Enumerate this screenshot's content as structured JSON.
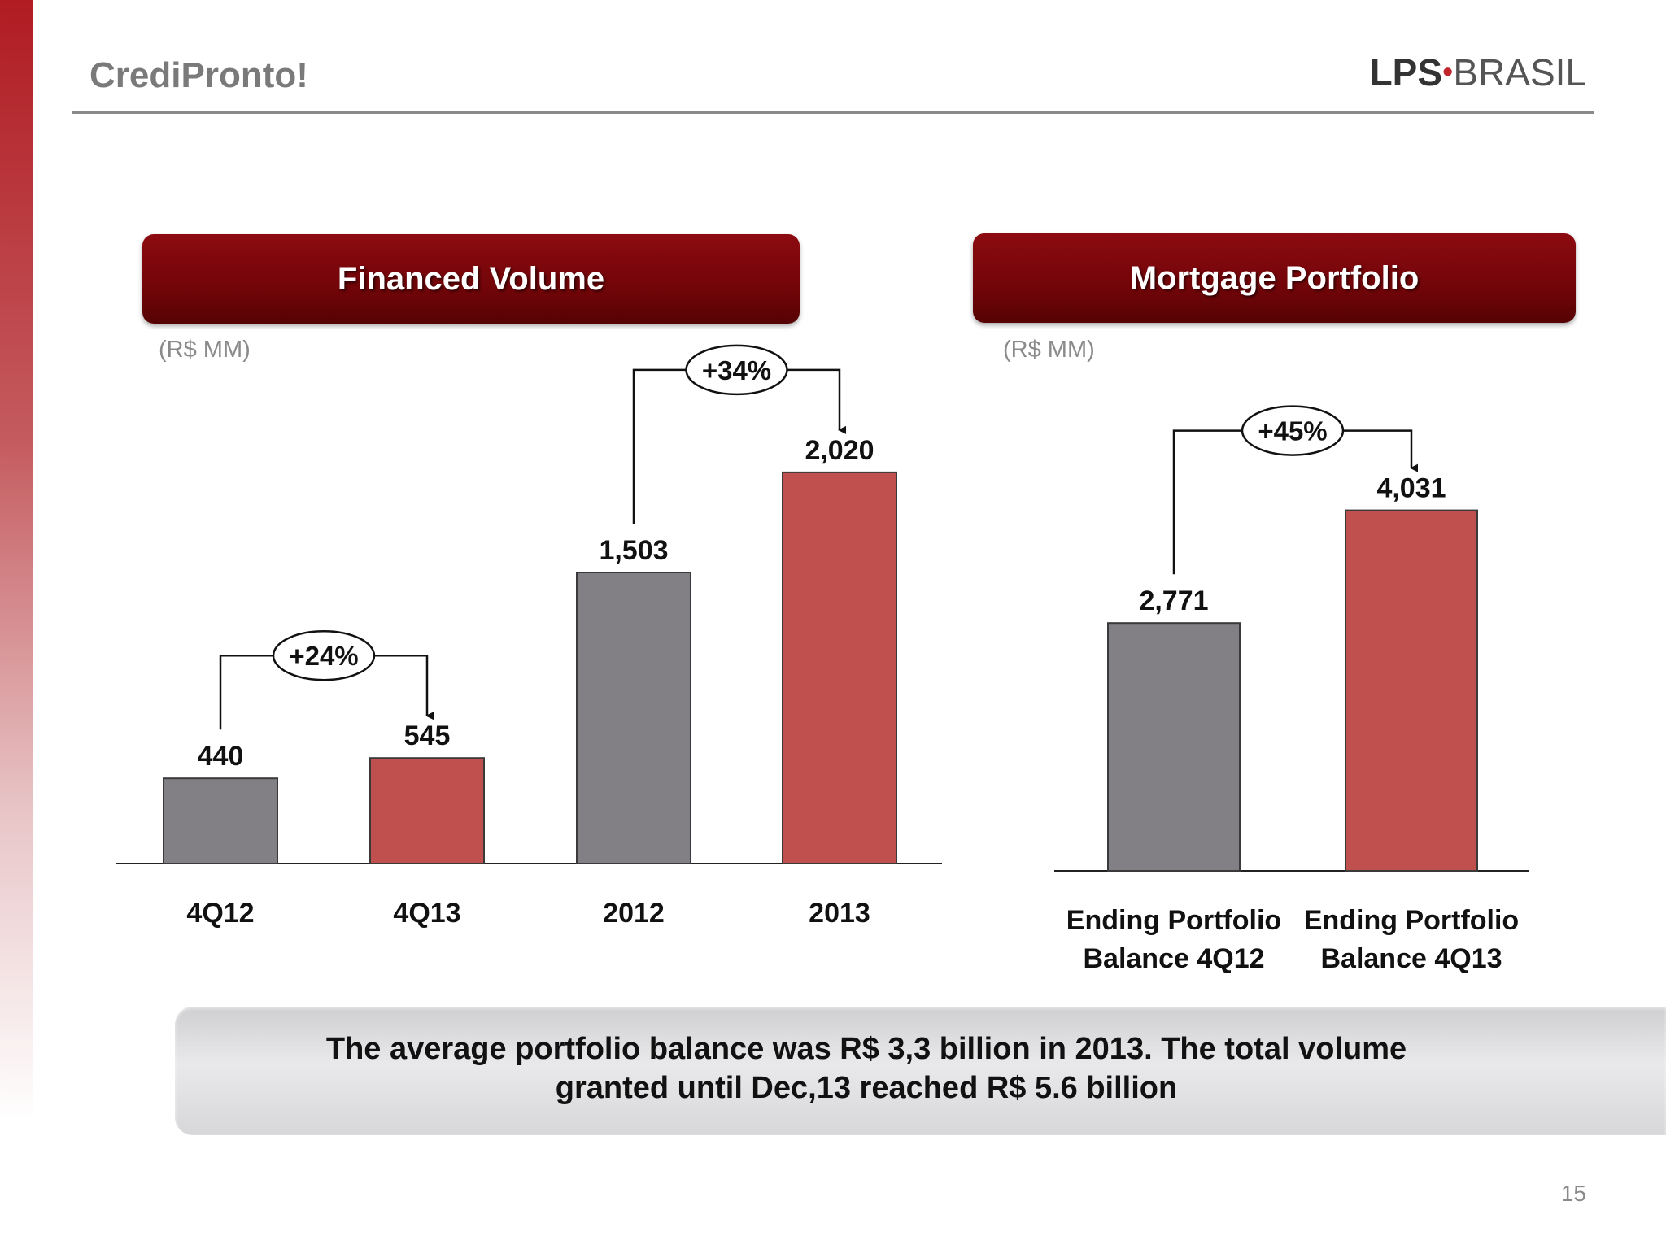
{
  "header": {
    "title": "CrediPronto!",
    "logo_part1": "LPS",
    "logo_dot": "•",
    "logo_part2": "BRASIL"
  },
  "panels": {
    "left_title": "Financed Volume",
    "right_title": "Mortgage Portfolio",
    "left_unit": "(R$ MM)",
    "right_unit": "(R$ MM)"
  },
  "colors": {
    "grey_bar": "#828084",
    "red_bar": "#c0504d",
    "banner": "#7a070c"
  },
  "chart_data": [
    {
      "type": "bar",
      "title": "Financed Volume",
      "unit": "(R$ MM)",
      "categories": [
        "4Q12",
        "4Q13",
        "2012",
        "2013"
      ],
      "values": [
        440,
        545,
        1503,
        2020
      ],
      "value_labels": [
        "440",
        "545",
        "1,503",
        "2,020"
      ],
      "bar_colors": [
        "#828084",
        "#c0504d",
        "#828084",
        "#c0504d"
      ],
      "ylim": [
        0,
        2200
      ],
      "annotations": [
        {
          "from": 0,
          "to": 1,
          "text": "+24%"
        },
        {
          "from": 2,
          "to": 3,
          "text": "+34%"
        }
      ],
      "grid": false,
      "legend": "none"
    },
    {
      "type": "bar",
      "title": "Mortgage Portfolio",
      "unit": "(R$ MM)",
      "categories": [
        [
          "Ending Portfolio",
          "Balance 4Q12"
        ],
        [
          "Ending Portfolio",
          "Balance 4Q13"
        ]
      ],
      "values": [
        2771,
        4031
      ],
      "value_labels": [
        "2,771",
        "4,031"
      ],
      "bar_colors": [
        "#828084",
        "#c0504d"
      ],
      "ylim": [
        0,
        4400
      ],
      "annotations": [
        {
          "from": 0,
          "to": 1,
          "text": "+45%"
        }
      ],
      "grid": false,
      "legend": "none"
    }
  ],
  "summary": {
    "line1": "The average portfolio balance was R$ 3,3 billion in 2013. The total volume",
    "line2": "granted until Dec,13 reached R$ 5.6 billion"
  },
  "footer": {
    "page_number": "15"
  }
}
